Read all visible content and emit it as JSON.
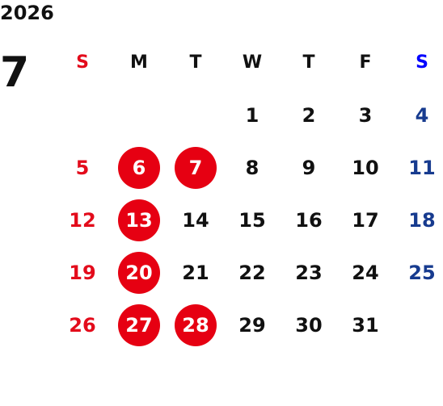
{
  "calendar": {
    "year": "2026",
    "month": "7",
    "weekdays": [
      "S",
      "M",
      "T",
      "W",
      "T",
      "F",
      "S"
    ],
    "weeks": [
      [
        "",
        "",
        "",
        "1",
        "2",
        "3",
        "4"
      ],
      [
        "5",
        "6",
        "7",
        "8",
        "9",
        "10",
        "11"
      ],
      [
        "12",
        "13",
        "14",
        "15",
        "16",
        "17",
        "18"
      ],
      [
        "19",
        "20",
        "21",
        "22",
        "23",
        "24",
        "25"
      ],
      [
        "26",
        "27",
        "28",
        "29",
        "30",
        "31",
        ""
      ]
    ],
    "highlighted_days": [
      "6",
      "7",
      "13",
      "20",
      "27",
      "28"
    ]
  },
  "colors": {
    "sunday": "#e30b1b",
    "saturday": "#173b8f",
    "saturday_header": "#0000ff",
    "highlight": "#e60012",
    "text": "#111111"
  }
}
